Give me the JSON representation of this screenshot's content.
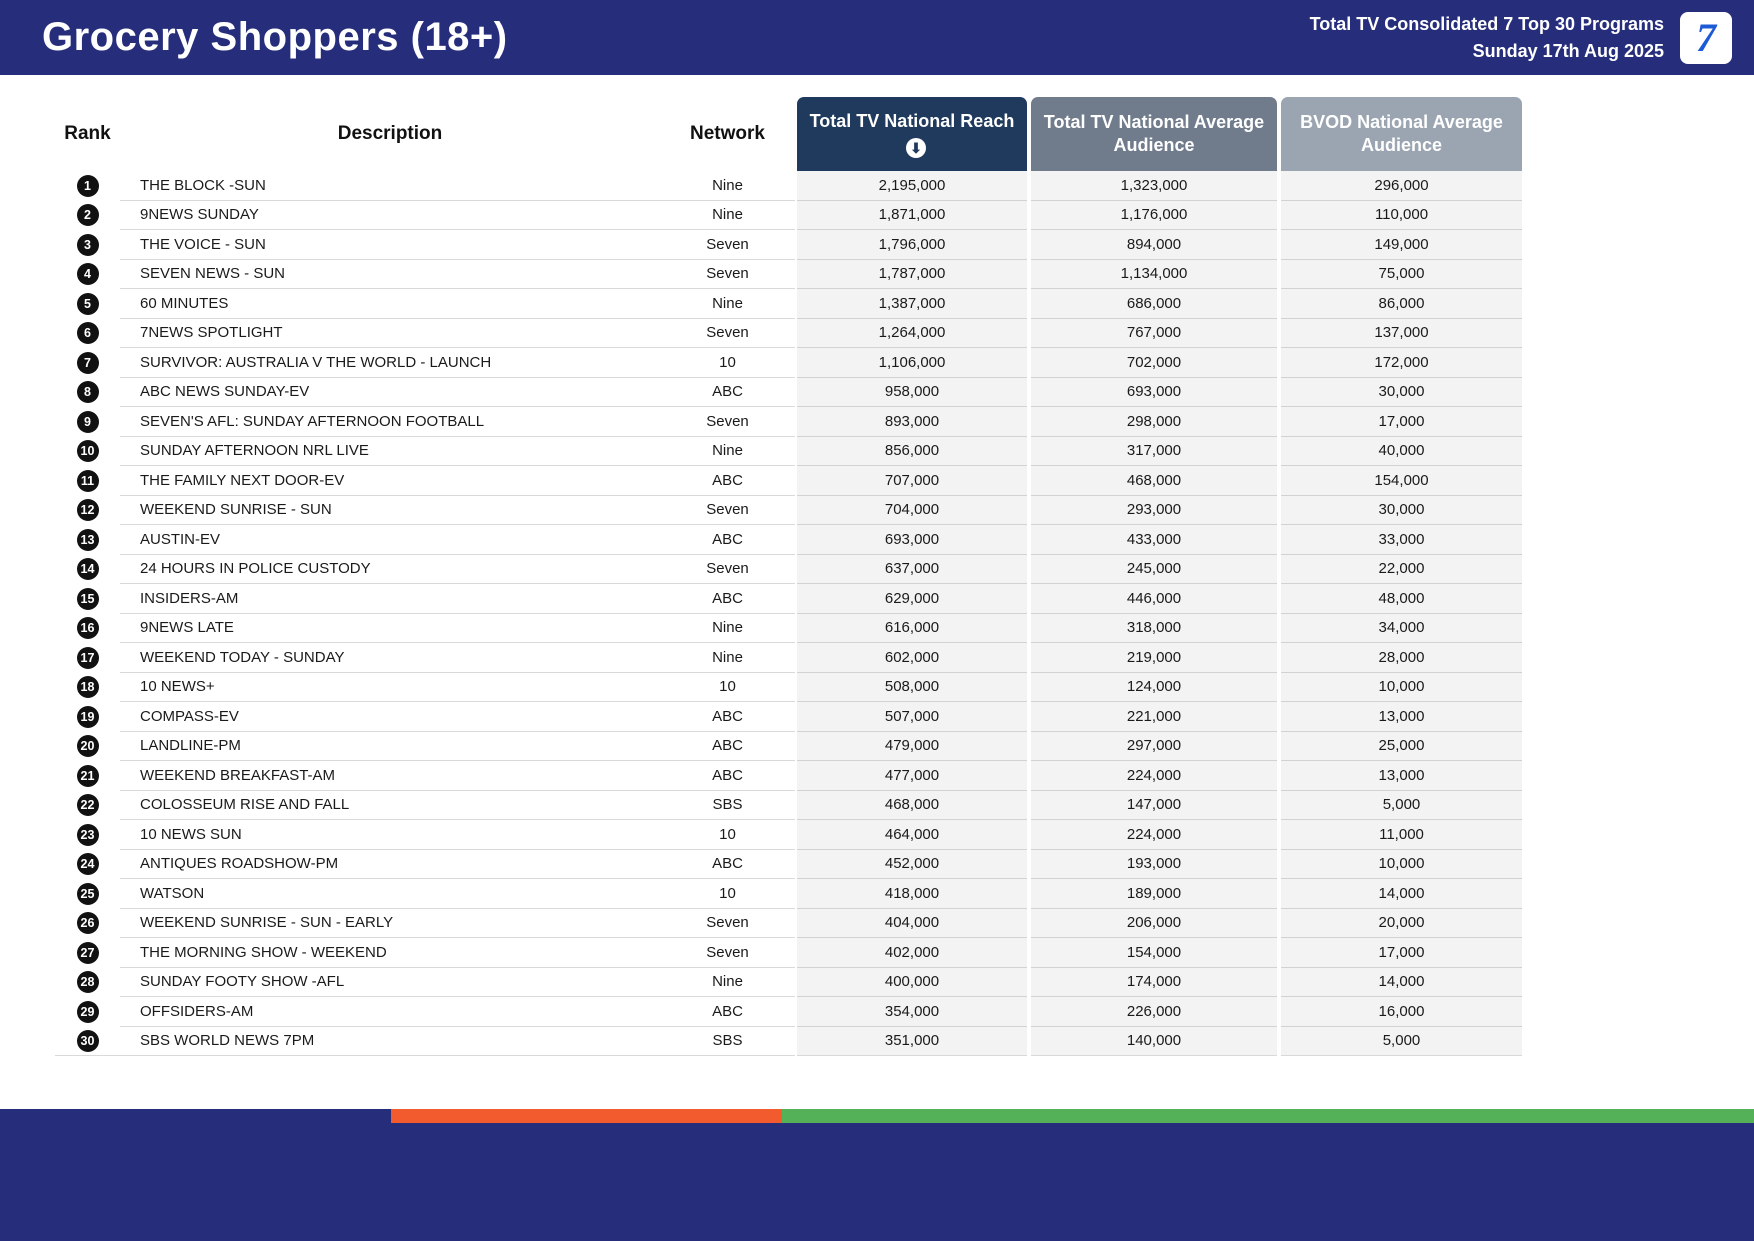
{
  "header": {
    "title": "Grocery Shoppers (18+)",
    "subtitle_line1": "Total TV Consolidated 7 Top 30 Programs",
    "subtitle_line2": "Sunday 17th Aug 2025",
    "logo_text": "7"
  },
  "table": {
    "columns": {
      "rank": "Rank",
      "description": "Description",
      "network": "Network",
      "reach": "Total TV National Reach",
      "avg_audience": "Total TV National Average Audience",
      "bvod_audience": "BVOD National Average Audience"
    },
    "sort_icon": "sort-descending-icon",
    "rows": [
      {
        "rank": "1",
        "description": "THE BLOCK -SUN",
        "network": "Nine",
        "reach": "2,195,000",
        "avg": "1,323,000",
        "bvod": "296,000"
      },
      {
        "rank": "2",
        "description": "9NEWS SUNDAY",
        "network": "Nine",
        "reach": "1,871,000",
        "avg": "1,176,000",
        "bvod": "110,000"
      },
      {
        "rank": "3",
        "description": "THE VOICE - SUN",
        "network": "Seven",
        "reach": "1,796,000",
        "avg": "894,000",
        "bvod": "149,000"
      },
      {
        "rank": "4",
        "description": "SEVEN NEWS - SUN",
        "network": "Seven",
        "reach": "1,787,000",
        "avg": "1,134,000",
        "bvod": "75,000"
      },
      {
        "rank": "5",
        "description": "60 MINUTES",
        "network": "Nine",
        "reach": "1,387,000",
        "avg": "686,000",
        "bvod": "86,000"
      },
      {
        "rank": "6",
        "description": "7NEWS SPOTLIGHT",
        "network": "Seven",
        "reach": "1,264,000",
        "avg": "767,000",
        "bvod": "137,000"
      },
      {
        "rank": "7",
        "description": "SURVIVOR: AUSTRALIA V THE WORLD - LAUNCH",
        "network": "10",
        "reach": "1,106,000",
        "avg": "702,000",
        "bvod": "172,000"
      },
      {
        "rank": "8",
        "description": "ABC NEWS SUNDAY-EV",
        "network": "ABC",
        "reach": "958,000",
        "avg": "693,000",
        "bvod": "30,000"
      },
      {
        "rank": "9",
        "description": "SEVEN'S AFL: SUNDAY AFTERNOON FOOTBALL",
        "network": "Seven",
        "reach": "893,000",
        "avg": "298,000",
        "bvod": "17,000"
      },
      {
        "rank": "10",
        "description": "SUNDAY AFTERNOON NRL LIVE",
        "network": "Nine",
        "reach": "856,000",
        "avg": "317,000",
        "bvod": "40,000"
      },
      {
        "rank": "11",
        "description": "THE FAMILY NEXT DOOR-EV",
        "network": "ABC",
        "reach": "707,000",
        "avg": "468,000",
        "bvod": "154,000"
      },
      {
        "rank": "12",
        "description": "WEEKEND SUNRISE - SUN",
        "network": "Seven",
        "reach": "704,000",
        "avg": "293,000",
        "bvod": "30,000"
      },
      {
        "rank": "13",
        "description": "AUSTIN-EV",
        "network": "ABC",
        "reach": "693,000",
        "avg": "433,000",
        "bvod": "33,000"
      },
      {
        "rank": "14",
        "description": "24 HOURS IN POLICE CUSTODY",
        "network": "Seven",
        "reach": "637,000",
        "avg": "245,000",
        "bvod": "22,000"
      },
      {
        "rank": "15",
        "description": "INSIDERS-AM",
        "network": "ABC",
        "reach": "629,000",
        "avg": "446,000",
        "bvod": "48,000"
      },
      {
        "rank": "16",
        "description": "9NEWS LATE",
        "network": "Nine",
        "reach": "616,000",
        "avg": "318,000",
        "bvod": "34,000"
      },
      {
        "rank": "17",
        "description": "WEEKEND TODAY - SUNDAY",
        "network": "Nine",
        "reach": "602,000",
        "avg": "219,000",
        "bvod": "28,000"
      },
      {
        "rank": "18",
        "description": "10 NEWS+",
        "network": "10",
        "reach": "508,000",
        "avg": "124,000",
        "bvod": "10,000"
      },
      {
        "rank": "19",
        "description": "COMPASS-EV",
        "network": "ABC",
        "reach": "507,000",
        "avg": "221,000",
        "bvod": "13,000"
      },
      {
        "rank": "20",
        "description": "LANDLINE-PM",
        "network": "ABC",
        "reach": "479,000",
        "avg": "297,000",
        "bvod": "25,000"
      },
      {
        "rank": "21",
        "description": "WEEKEND BREAKFAST-AM",
        "network": "ABC",
        "reach": "477,000",
        "avg": "224,000",
        "bvod": "13,000"
      },
      {
        "rank": "22",
        "description": "COLOSSEUM RISE AND FALL",
        "network": "SBS",
        "reach": "468,000",
        "avg": "147,000",
        "bvod": "5,000"
      },
      {
        "rank": "23",
        "description": "10 NEWS SUN",
        "network": "10",
        "reach": "464,000",
        "avg": "224,000",
        "bvod": "11,000"
      },
      {
        "rank": "24",
        "description": "ANTIQUES ROADSHOW-PM",
        "network": "ABC",
        "reach": "452,000",
        "avg": "193,000",
        "bvod": "10,000"
      },
      {
        "rank": "25",
        "description": "WATSON",
        "network": "10",
        "reach": "418,000",
        "avg": "189,000",
        "bvod": "14,000"
      },
      {
        "rank": "26",
        "description": "WEEKEND SUNRISE - SUN - EARLY",
        "network": "Seven",
        "reach": "404,000",
        "avg": "206,000",
        "bvod": "20,000"
      },
      {
        "rank": "27",
        "description": "THE MORNING SHOW - WEEKEND",
        "network": "Seven",
        "reach": "402,000",
        "avg": "154,000",
        "bvod": "17,000"
      },
      {
        "rank": "28",
        "description": "SUNDAY FOOTY SHOW -AFL",
        "network": "Nine",
        "reach": "400,000",
        "avg": "174,000",
        "bvod": "14,000"
      },
      {
        "rank": "29",
        "description": "OFFSIDERS-AM",
        "network": "ABC",
        "reach": "354,000",
        "avg": "226,000",
        "bvod": "16,000"
      },
      {
        "rank": "30",
        "description": "SBS WORLD NEWS 7PM",
        "network": "SBS",
        "reach": "351,000",
        "avg": "140,000",
        "bvod": "5,000"
      }
    ]
  },
  "colors": {
    "header_navy": "#262e7c",
    "reach_header": "#1f3a5c",
    "avg_header": "#707c8c",
    "bvod_header": "#9aa5b1",
    "logo_blue": "#1d5bd6"
  },
  "footer": {
    "stripe": [
      {
        "color": "#262e7c",
        "width": "22.3%"
      },
      {
        "color": "#f15b2e",
        "width": "22.3%"
      },
      {
        "color": "#54b157",
        "width": "55.4%"
      }
    ]
  }
}
